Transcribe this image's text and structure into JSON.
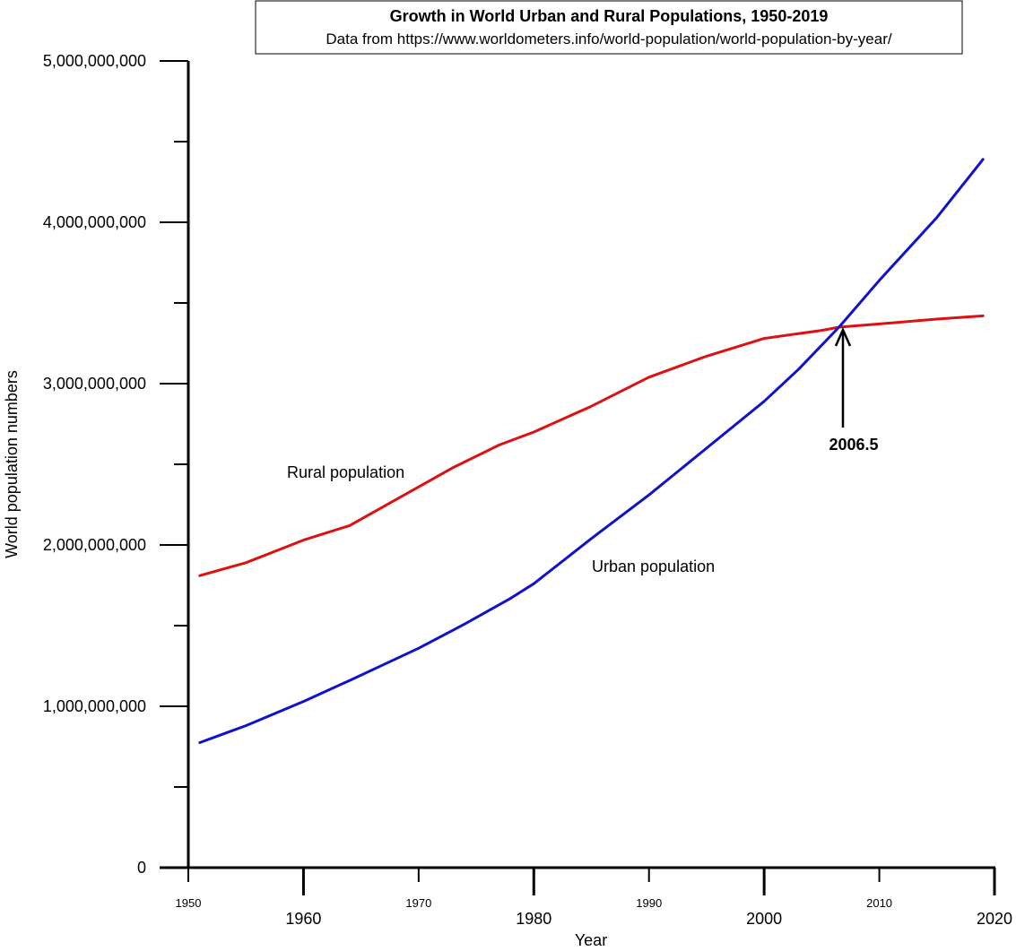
{
  "chart_data": {
    "type": "line",
    "title": "Growth in World Urban and Rural Populations, 1950-2019",
    "subtitle": "Data from https://www.worldometers.info/world-population/world-population-by-year/",
    "xlabel": "Year",
    "ylabel": "World population numbers",
    "xlim": [
      1950,
      2020
    ],
    "ylim": [
      0,
      5000000000
    ],
    "grid": false,
    "y_ticks": [
      0,
      1000000000,
      2000000000,
      3000000000,
      4000000000,
      5000000000
    ],
    "y_tick_labels": [
      "0",
      "1,000,000,000",
      "2,000,000,000",
      "3,000,000,000",
      "4,000,000,000",
      "5,000,000,000"
    ],
    "x_ticks_major": [
      1960,
      1980,
      2000,
      2020
    ],
    "x_ticks_minor_labeled": [
      1950,
      1970,
      1990,
      2010
    ],
    "x_tick_labels_major": [
      "1960",
      "1980",
      "2000",
      "2020"
    ],
    "x_tick_labels_minor": [
      "1950",
      "1970",
      "1990",
      "2010"
    ],
    "series": [
      {
        "name": "Rural population",
        "color": "#dd1111",
        "x": [
          1951,
          1955,
          1960,
          1964,
          1967,
          1970,
          1973,
          1977,
          1980,
          1985,
          1990,
          1995,
          2000,
          2005,
          2006.5,
          2010,
          2015,
          2019
        ],
        "y": [
          1810000000,
          1890000000,
          2030000000,
          2120000000,
          2240000000,
          2360000000,
          2480000000,
          2620000000,
          2700000000,
          2860000000,
          3040000000,
          3170000000,
          3280000000,
          3330000000,
          3350000000,
          3370000000,
          3400000000,
          3420000000
        ]
      },
      {
        "name": "Urban population",
        "color": "#1111cc",
        "x": [
          1951,
          1955,
          1960,
          1964,
          1970,
          1974,
          1978,
          1980,
          1985,
          1990,
          1995,
          2000,
          2003,
          2006.5,
          2010,
          2015,
          2019
        ],
        "y": [
          775000000,
          880000000,
          1030000000,
          1160000000,
          1360000000,
          1510000000,
          1670000000,
          1760000000,
          2040000000,
          2310000000,
          2600000000,
          2890000000,
          3090000000,
          3350000000,
          3640000000,
          4030000000,
          4390000000
        ]
      }
    ],
    "annotations": [
      {
        "text": "2006.5",
        "x": 2006.5,
        "y": 3350000000
      }
    ]
  }
}
